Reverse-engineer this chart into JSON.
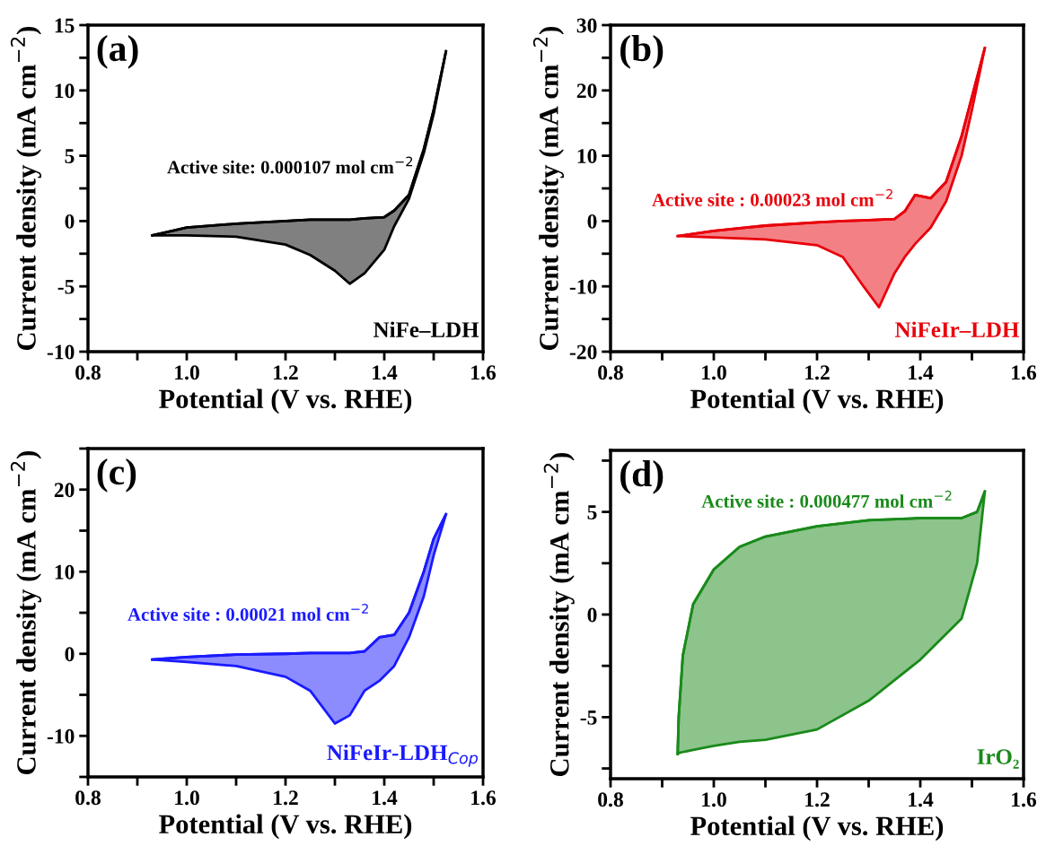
{
  "chart_data": [
    {
      "type": "line",
      "xlabel": "Potential (V vs. RHE)",
      "ylabel": "Current density (mA cm$^{−2}$)",
      "xlim": [
        0.8,
        1.6
      ],
      "ylim": [
        -10,
        15
      ],
      "xticks": [
        0.8,
        {
          "value": 0.9,
          "label": null
        },
        {
          "value": 1.0,
          "label": "1.0"
        },
        {
          "value": 1.1,
          "label": null
        },
        1.2,
        {
          "value": 1.3,
          "label": null
        },
        1.4,
        {
          "value": 1.5,
          "label": null
        },
        1.6
      ],
      "yticks": [
        -10,
        {
          "value": -7.5,
          "label": null
        },
        -5,
        {
          "value": -2.5,
          "label": null
        },
        0,
        {
          "value": 2.5,
          "label": null
        },
        5,
        {
          "value": 7.5,
          "label": null
        },
        10,
        {
          "value": 12.5,
          "label": null
        },
        15
      ],
      "annotations": [
        "(a)",
        "Active site: 0.000107 mol cm$^{−2}$",
        "NiFe–LDH"
      ],
      "series": [
        {
          "color": "#000000",
          "x": [
            0.93,
            1.0,
            1.1,
            1.2,
            1.25,
            1.3,
            1.33,
            1.36,
            1.4,
            1.42,
            1.45,
            1.48,
            1.5,
            1.525
          ],
          "values": [
            -1.1,
            -0.5,
            -0.2,
            0.0,
            0.1,
            0.1,
            0.1,
            0.2,
            0.3,
            0.8,
            2.0,
            5.5,
            8.5,
            13
          ],
          "upper": [
            -1.1,
            -0.5,
            -0.2,
            0.0,
            0.1,
            0.1,
            0.1,
            0.2,
            0.3,
            0.8,
            2.0,
            5.5,
            8.5,
            13
          ],
          "lower": [
            -1.1,
            -1.1,
            -1.2,
            -1.8,
            -2.6,
            -3.8,
            -4.8,
            -4.0,
            -2.2,
            -0.4,
            1.7,
            5.2,
            8.2,
            13
          ]
        }
      ]
    },
    {
      "type": "line",
      "xlabel": "Potential (V vs. RHE)",
      "ylabel": "Current density (mA cm$^{−2}$)",
      "xlim": [
        0.8,
        1.6
      ],
      "ylim": [
        -20,
        30
      ],
      "xticks": [
        0.8,
        {
          "value": 0.9,
          "label": null
        },
        {
          "value": 1.0,
          "label": "1.0"
        },
        {
          "value": 1.1,
          "label": null
        },
        1.2,
        {
          "value": 1.3,
          "label": null
        },
        1.4,
        {
          "value": 1.5,
          "label": null
        },
        1.6
      ],
      "yticks": [
        -20,
        {
          "value": -15,
          "label": null
        },
        -10,
        {
          "value": -5,
          "label": null
        },
        0,
        {
          "value": 5,
          "label": null
        },
        10,
        {
          "value": 15,
          "label": null
        },
        20,
        {
          "value": 25,
          "label": null
        },
        30
      ],
      "annotations": [
        "(b)",
        "Active site : 0.00023 mol cm$^{−2}$",
        "NiFeIr–LDH"
      ],
      "series": [
        {
          "color": "#e8000b",
          "x": [
            0.93,
            1.0,
            1.1,
            1.2,
            1.25,
            1.29,
            1.32,
            1.35,
            1.37,
            1.39,
            1.42,
            1.45,
            1.48,
            1.5,
            1.525
          ],
          "values": [
            -2.3,
            -1.5,
            -0.7,
            -0.2,
            0.0,
            0.1,
            0.2,
            0.3,
            1.5,
            4.0,
            3.5,
            6,
            13,
            19,
            26.5
          ],
          "upper": [
            -2.3,
            -1.5,
            -0.7,
            -0.2,
            0.0,
            0.1,
            0.2,
            0.3,
            1.5,
            4.0,
            3.5,
            6,
            13,
            19,
            26.5
          ],
          "lower": [
            -2.3,
            -2.5,
            -2.8,
            -3.7,
            -5.5,
            -10,
            -13.2,
            -8,
            -5.5,
            -3.5,
            -1,
            3,
            10,
            17,
            26.5
          ]
        }
      ]
    },
    {
      "type": "line",
      "xlabel": "Potential (V vs. RHE)",
      "ylabel": "Current density (mA cm$^{−2}$)",
      "xlim": [
        0.8,
        1.6
      ],
      "ylim": [
        -15,
        25
      ],
      "xticks": [
        0.8,
        {
          "value": 0.9,
          "label": null
        },
        {
          "value": 1.0,
          "label": "1.0"
        },
        {
          "value": 1.1,
          "label": null
        },
        1.2,
        {
          "value": 1.3,
          "label": null
        },
        1.4,
        {
          "value": 1.5,
          "label": null
        },
        1.6
      ],
      "yticks": [
        {
          "value": -15,
          "label": null
        },
        -10,
        {
          "value": -5,
          "label": null
        },
        0,
        {
          "value": 5,
          "label": null
        },
        10,
        {
          "value": 15,
          "label": null
        },
        20,
        {
          "value": 25,
          "label": null
        }
      ],
      "annotations": [
        "(c)",
        "Active site : 0.00021 mol cm$^{−2}$",
        "NiFeIr-LDH$_{Cop}$"
      ],
      "series": [
        {
          "color": "#1a1aff",
          "x": [
            0.93,
            1.0,
            1.1,
            1.2,
            1.25,
            1.3,
            1.33,
            1.36,
            1.39,
            1.42,
            1.45,
            1.48,
            1.5,
            1.525
          ],
          "values": [
            -0.7,
            -0.4,
            -0.1,
            0.0,
            0.1,
            0.1,
            0.1,
            0.3,
            2,
            2.3,
            5,
            10,
            14,
            17
          ],
          "upper": [
            -0.7,
            -0.4,
            -0.1,
            0.0,
            0.1,
            0.1,
            0.1,
            0.3,
            2,
            2.3,
            5,
            10,
            14,
            17
          ],
          "lower": [
            -0.7,
            -1.0,
            -1.5,
            -2.8,
            -4.5,
            -8.5,
            -7.5,
            -4.5,
            -3.3,
            -1.5,
            2,
            7,
            12,
            17
          ]
        }
      ]
    },
    {
      "type": "line",
      "xlabel": "Potential (V vs. RHE)",
      "ylabel": "Current density (mA cm$^{−2}$)",
      "xlim": [
        0.8,
        1.6
      ],
      "ylim": [
        -8,
        8
      ],
      "xticks": [
        0.8,
        {
          "value": 0.9,
          "label": null
        },
        {
          "value": 1.0,
          "label": "1.0"
        },
        {
          "value": 1.1,
          "label": null
        },
        1.2,
        {
          "value": 1.3,
          "label": null
        },
        1.4,
        {
          "value": 1.5,
          "label": null
        },
        1.6
      ],
      "yticks": [
        {
          "value": -7.5,
          "label": null
        },
        -5,
        {
          "value": -2.5,
          "label": null
        },
        0,
        {
          "value": 2.5,
          "label": null
        },
        5,
        {
          "value": 7.5,
          "label": null
        }
      ],
      "annotations": [
        "(d)",
        "Active site : 0.000477 mol cm$^{−2}$",
        "IrO₂"
      ],
      "series": [
        {
          "color": "#1a8a1a",
          "x": [
            0.93,
            0.932,
            0.94,
            0.96,
            1.0,
            1.05,
            1.1,
            1.2,
            1.3,
            1.4,
            1.48,
            1.51,
            1.525
          ],
          "values": [
            -6.8,
            -5,
            -2,
            0.5,
            2.2,
            3.3,
            3.8,
            4.3,
            4.6,
            4.7,
            4.7,
            5.0,
            6.0
          ],
          "upper": [
            -6.8,
            -5,
            -2,
            0.5,
            2.2,
            3.3,
            3.8,
            4.3,
            4.6,
            4.7,
            4.7,
            5.0,
            6.0
          ],
          "lower": [
            -6.8,
            -6.75,
            -6.7,
            -6.6,
            -6.4,
            -6.2,
            -6.1,
            -5.6,
            -4.2,
            -2.2,
            -0.2,
            2.5,
            6.0
          ]
        }
      ]
    }
  ]
}
